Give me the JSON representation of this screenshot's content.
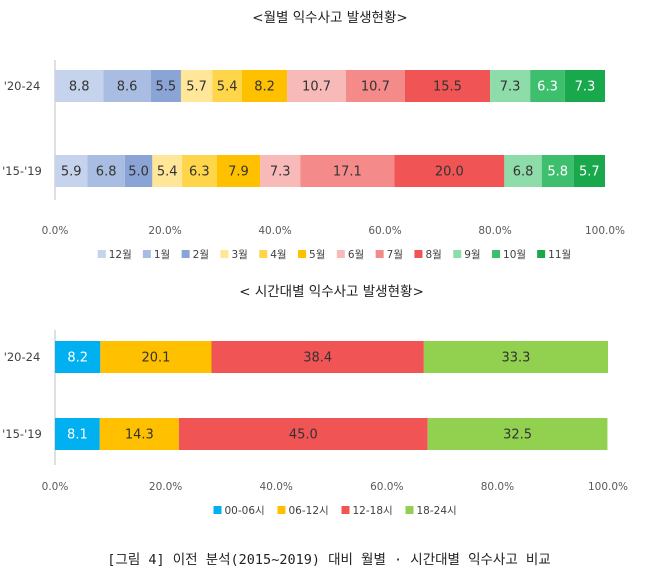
{
  "caption": "[그림 4] 이전 분석(2015~2019) 대비 월별 · 시간대별 익수사고 비교",
  "chart_data": [
    {
      "type": "bar",
      "orientation": "horizontal",
      "stacked": "percent",
      "title": "<월별 익수사고 발생현황>",
      "categories": [
        "'20-24",
        "'15-'19"
      ],
      "series": [
        {
          "name": "12월",
          "values": [
            8.8,
            5.9
          ],
          "color": "#c6d3ec"
        },
        {
          "name": "1월",
          "values": [
            8.6,
            6.8
          ],
          "color": "#a9bde2"
        },
        {
          "name": "2월",
          "values": [
            5.5,
            5.0
          ],
          "color": "#8aa4d6"
        },
        {
          "name": "3월",
          "values": [
            5.7,
            5.4
          ],
          "color": "#ffe699"
        },
        {
          "name": "4월",
          "values": [
            5.4,
            6.3
          ],
          "color": "#ffd54a"
        },
        {
          "name": "5월",
          "values": [
            8.2,
            7.9
          ],
          "color": "#ffc000"
        },
        {
          "name": "6월",
          "values": [
            10.7,
            7.3
          ],
          "color": "#f8b9b9"
        },
        {
          "name": "7월",
          "values": [
            10.7,
            17.1
          ],
          "color": "#f48a8a"
        },
        {
          "name": "8월",
          "values": [
            15.5,
            20.0
          ],
          "color": "#f05454"
        },
        {
          "name": "9월",
          "values": [
            7.3,
            6.8
          ],
          "color": "#8fdcab"
        },
        {
          "name": "10월",
          "values": [
            6.3,
            5.8
          ],
          "color": "#3dbf6e"
        },
        {
          "name": "11월",
          "values": [
            7.3,
            5.7
          ],
          "color": "#1aa84d"
        }
      ],
      "xlim": [
        0,
        100
      ],
      "xticks": [
        "0.0%",
        "20.0%",
        "40.0%",
        "60.0%",
        "80.0%",
        "100.0%"
      ],
      "legend": "bottom"
    },
    {
      "type": "bar",
      "orientation": "horizontal",
      "stacked": "percent",
      "title": "< 시간대별 익수사고 발생현황>",
      "categories": [
        "'20-24",
        "'15-'19"
      ],
      "series": [
        {
          "name": "00-06시",
          "values": [
            8.2,
            8.1
          ],
          "color": "#00b0f0"
        },
        {
          "name": "06-12시",
          "values": [
            20.1,
            14.3
          ],
          "color": "#ffc000"
        },
        {
          "name": "12-18시",
          "values": [
            38.4,
            45.0
          ],
          "color": "#f05454"
        },
        {
          "name": "18-24시",
          "values": [
            33.3,
            32.5
          ],
          "color": "#92d050"
        }
      ],
      "xlim": [
        0,
        100
      ],
      "xticks": [
        "0.0%",
        "20.0%",
        "40.0%",
        "60.0%",
        "80.0%",
        "100.0%"
      ],
      "legend": "bottom"
    }
  ]
}
